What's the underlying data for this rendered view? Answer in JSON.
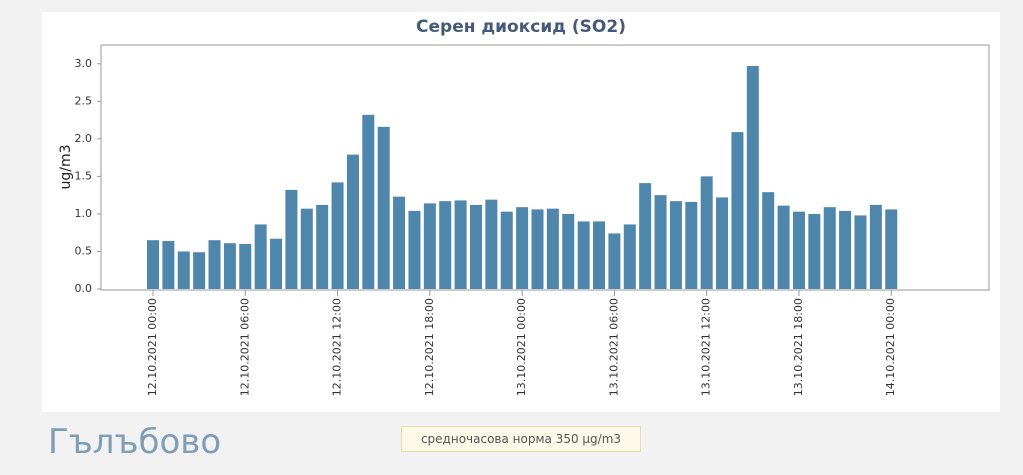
{
  "chart_data": {
    "type": "bar",
    "title": "Серен диоксид (SO2)",
    "y_label": "ug/m3",
    "categories": [
      "12.10.2021 00:00",
      null,
      null,
      null,
      null,
      null,
      "12.10.2021 06:00",
      null,
      null,
      null,
      null,
      null,
      "12.10.2021 12:00",
      null,
      null,
      null,
      null,
      null,
      "12.10.2021 18:00",
      null,
      null,
      null,
      null,
      null,
      "13.10.2021 00:00",
      null,
      null,
      null,
      null,
      null,
      "13.10.2021 06:00",
      null,
      null,
      null,
      null,
      null,
      "13.10.2021 12:00",
      null,
      null,
      null,
      null,
      null,
      "13.10.2021 18:00",
      null,
      null,
      null,
      null,
      null,
      "14.10.2021 00:00"
    ],
    "values": [
      0.65,
      0.64,
      0.5,
      0.49,
      0.65,
      0.61,
      0.6,
      0.86,
      0.67,
      1.32,
      1.07,
      1.12,
      1.42,
      1.79,
      2.32,
      2.16,
      1.23,
      1.04,
      1.14,
      1.17,
      1.18,
      1.12,
      1.19,
      1.03,
      1.09,
      1.06,
      1.07,
      1.0,
      0.9,
      0.9,
      0.74,
      0.86,
      1.41,
      1.25,
      1.17,
      1.16,
      1.5,
      1.22,
      2.09,
      2.97,
      1.29,
      1.11,
      1.03,
      1.0,
      1.09,
      1.04,
      0.98,
      1.12,
      1.06
    ],
    "color": "#4f86ab",
    "ylim": [
      0,
      3.25
    ],
    "yticks": [
      {
        "value": 0,
        "label": "0.0"
      },
      0.5,
      {
        "value": 1,
        "label": "1.0"
      },
      1.5,
      {
        "value": 2,
        "label": "2.0"
      },
      2.5,
      {
        "value": 3,
        "label": "3.0"
      }
    ]
  },
  "location": "Гълъбово",
  "note": "средночасова норма 350 μg/m3"
}
